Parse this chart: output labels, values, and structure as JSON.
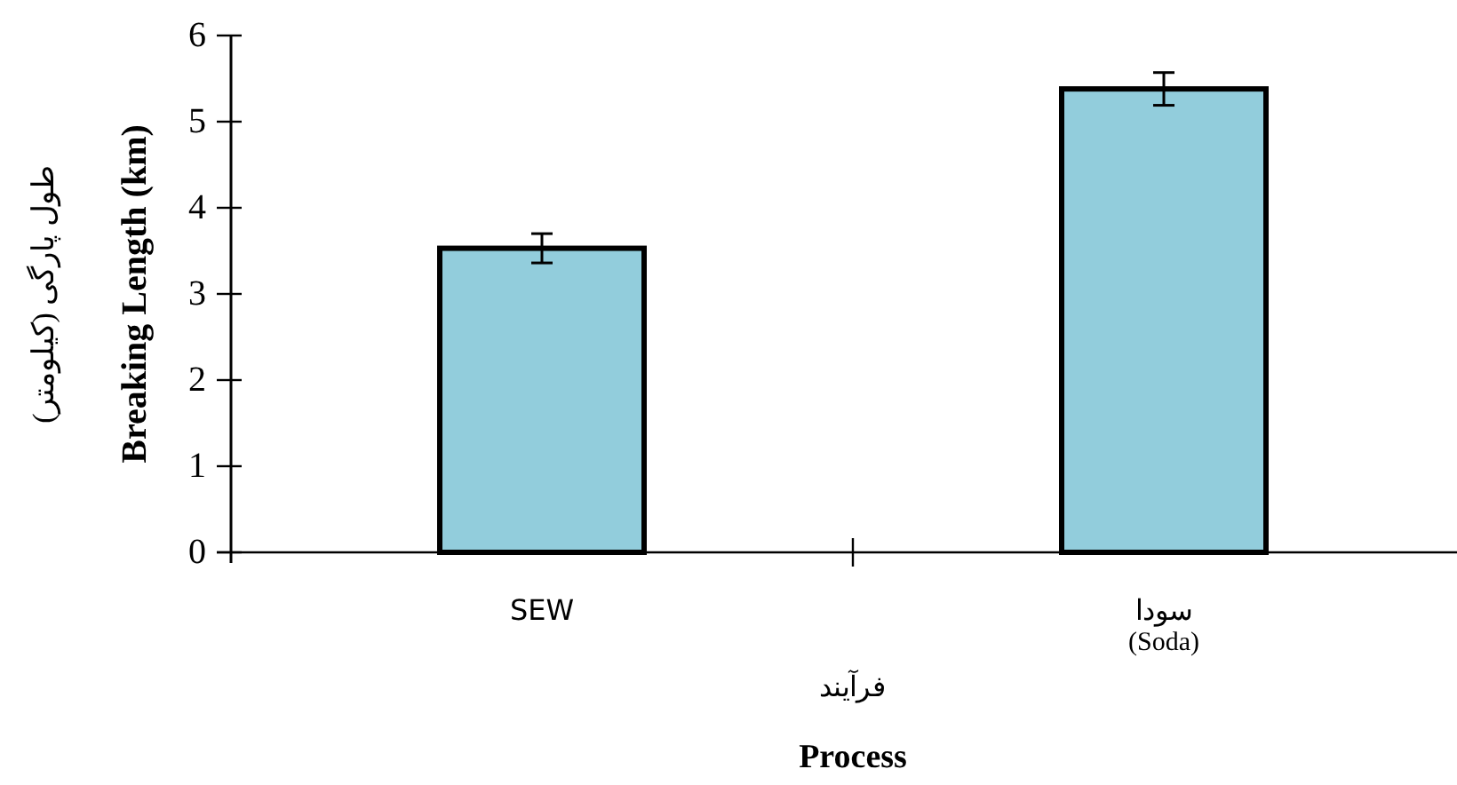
{
  "chart_data": {
    "type": "bar",
    "categories": [
      "SEW",
      "سودا\n(Soda)"
    ],
    "values": [
      3.53,
      5.38
    ],
    "errors": [
      0.17,
      0.19
    ],
    "color": "#92cddc",
    "xlabel": "فرآیند\nProcess",
    "ylabel": "طول پارگی (کیلومتر)\nBreaking Length (km)",
    "ylim": [
      0,
      6
    ],
    "yticks": [
      0,
      1,
      2,
      3,
      4,
      5,
      6
    ],
    "grid": false
  }
}
